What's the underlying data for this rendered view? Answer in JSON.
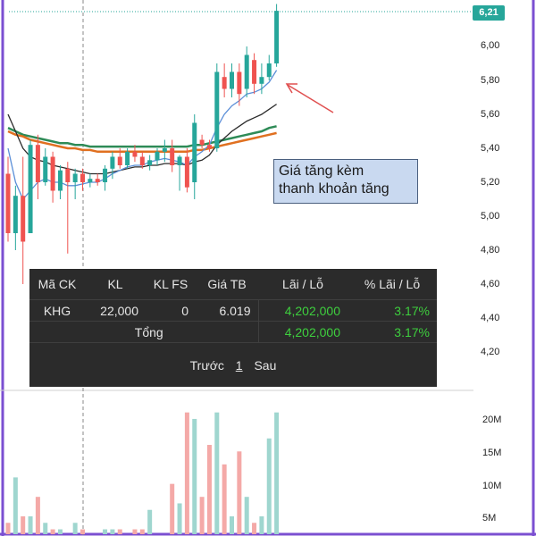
{
  "price_axis": {
    "last_price": "6,21",
    "ticks": [
      "6,00",
      "5,80",
      "5,60",
      "5,40",
      "5,20",
      "5,00",
      "4,80",
      "4,60",
      "4,40",
      "4,20"
    ]
  },
  "volume_axis": {
    "ticks": [
      "20M",
      "15M",
      "10M",
      "5M"
    ]
  },
  "annotation": {
    "line1": "Giá tăng kèm",
    "line2": "thanh khoản tăng"
  },
  "pnl_table": {
    "headers": [
      "Mã CK",
      "KL",
      "KL FS",
      "Giá TB",
      "Lãi / Lỗ",
      "% Lãi / Lỗ"
    ],
    "row": {
      "symbol": "KHG",
      "qty": "22,000",
      "qty_fs": "0",
      "avg_price": "6.019",
      "pnl": "4,202,000",
      "pnl_pct": "3.17%"
    },
    "total": {
      "label": "Tổng",
      "pnl": "4,202,000",
      "pnl_pct": "3.17%"
    },
    "pager": {
      "prev": "Trước",
      "page": "1",
      "next": "Sau"
    }
  },
  "colors": {
    "up": "#26a69a",
    "down": "#ef5350",
    "ma_green": "#2e8b57",
    "ma_orange": "#e07020",
    "ma_dark": "#2b2b2b",
    "ma_blue": "#5b8fd8",
    "annotation_bg": "#c9d9f0",
    "panel_bg": "#2b2b2b",
    "positive_text": "#3ecf3e"
  },
  "chart_data": {
    "type": "candlestick",
    "ylim": [
      4.1,
      6.25
    ],
    "candles": [
      {
        "o": 5.25,
        "h": 5.35,
        "l": 4.85,
        "c": 4.9
      },
      {
        "o": 4.9,
        "h": 5.18,
        "l": 4.8,
        "c": 5.12
      },
      {
        "o": 5.12,
        "h": 5.35,
        "l": 4.6,
        "c": 4.85
      },
      {
        "o": 4.9,
        "h": 5.45,
        "l": 4.9,
        "c": 5.42
      },
      {
        "o": 5.42,
        "h": 5.48,
        "l": 5.1,
        "c": 5.2
      },
      {
        "o": 5.2,
        "h": 5.4,
        "l": 5.18,
        "c": 5.35
      },
      {
        "o": 5.35,
        "h": 5.38,
        "l": 5.08,
        "c": 5.15
      },
      {
        "o": 5.15,
        "h": 5.3,
        "l": 5.1,
        "c": 5.27
      },
      {
        "o": 5.28,
        "h": 5.32,
        "l": 4.78,
        "c": 5.2
      },
      {
        "o": 5.2,
        "h": 5.28,
        "l": 5.1,
        "c": 5.25
      },
      {
        "o": 5.25,
        "h": 5.28,
        "l": 5.15,
        "c": 5.2
      },
      {
        "o": 5.2,
        "h": 5.25,
        "l": 5.17,
        "c": 5.22
      },
      {
        "o": 5.22,
        "h": 5.25,
        "l": 5.18,
        "c": 5.2
      },
      {
        "o": 5.2,
        "h": 5.3,
        "l": 5.15,
        "c": 5.28
      },
      {
        "o": 5.28,
        "h": 5.38,
        "l": 5.22,
        "c": 5.35
      },
      {
        "o": 5.35,
        "h": 5.4,
        "l": 5.28,
        "c": 5.3
      },
      {
        "o": 5.3,
        "h": 5.4,
        "l": 5.28,
        "c": 5.38
      },
      {
        "o": 5.38,
        "h": 5.42,
        "l": 5.32,
        "c": 5.35
      },
      {
        "o": 5.35,
        "h": 5.38,
        "l": 5.28,
        "c": 5.3
      },
      {
        "o": 5.3,
        "h": 5.36,
        "l": 5.27,
        "c": 5.33
      },
      {
        "o": 5.33,
        "h": 5.4,
        "l": 5.3,
        "c": 5.38
      },
      {
        "o": 5.38,
        "h": 5.45,
        "l": 5.32,
        "c": 5.4
      },
      {
        "o": 5.4,
        "h": 5.45,
        "l": 5.26,
        "c": 5.3
      },
      {
        "o": 5.3,
        "h": 5.36,
        "l": 5.15,
        "c": 5.35
      },
      {
        "o": 5.35,
        "h": 5.4,
        "l": 5.14,
        "c": 5.17
      },
      {
        "o": 5.2,
        "h": 5.6,
        "l": 5.1,
        "c": 5.55
      },
      {
        "o": 5.45,
        "h": 5.48,
        "l": 5.4,
        "c": 5.42
      },
      {
        "o": 5.42,
        "h": 5.45,
        "l": 5.38,
        "c": 5.4
      },
      {
        "o": 5.4,
        "h": 5.9,
        "l": 5.38,
        "c": 5.85
      },
      {
        "o": 5.82,
        "h": 5.9,
        "l": 5.7,
        "c": 5.75
      },
      {
        "o": 5.75,
        "h": 5.9,
        "l": 5.7,
        "c": 5.85
      },
      {
        "o": 5.85,
        "h": 5.9,
        "l": 5.65,
        "c": 5.72
      },
      {
        "o": 5.75,
        "h": 6.0,
        "l": 5.7,
        "c": 5.95
      },
      {
        "o": 5.92,
        "h": 5.96,
        "l": 5.72,
        "c": 5.78
      },
      {
        "o": 5.78,
        "h": 5.9,
        "l": 5.72,
        "c": 5.82
      },
      {
        "o": 5.82,
        "h": 5.95,
        "l": 5.8,
        "c": 5.9
      },
      {
        "o": 5.9,
        "h": 6.25,
        "l": 5.88,
        "c": 6.21
      }
    ],
    "volumes": [
      4,
      11,
      5,
      5,
      8,
      4,
      3,
      3,
      2,
      4,
      3,
      2,
      2,
      3,
      3,
      3,
      2,
      3,
      3,
      6,
      2,
      2,
      10,
      7,
      21,
      20,
      8,
      16,
      21,
      13,
      5,
      15,
      8,
      4,
      5,
      17,
      21
    ],
    "moving_averages": [
      {
        "color": "#2e8b57",
        "values": [
          5.52,
          5.5,
          5.48,
          5.47,
          5.46,
          5.45,
          5.44,
          5.43,
          5.43,
          5.42,
          5.42,
          5.41,
          5.41,
          5.41,
          5.41,
          5.41,
          5.41,
          5.41,
          5.41,
          5.41,
          5.41,
          5.41,
          5.41,
          5.41,
          5.41,
          5.42,
          5.42,
          5.43,
          5.44,
          5.45,
          5.46,
          5.47,
          5.48,
          5.49,
          5.5,
          5.52,
          5.53
        ]
      },
      {
        "color": "#e07020",
        "values": [
          5.5,
          5.48,
          5.47,
          5.45,
          5.44,
          5.43,
          5.42,
          5.41,
          5.4,
          5.4,
          5.39,
          5.39,
          5.38,
          5.38,
          5.38,
          5.38,
          5.38,
          5.38,
          5.38,
          5.38,
          5.38,
          5.38,
          5.38,
          5.38,
          5.38,
          5.39,
          5.39,
          5.4,
          5.41,
          5.42,
          5.43,
          5.44,
          5.45,
          5.46,
          5.47,
          5.48,
          5.49
        ]
      },
      {
        "color": "#2b2b2b",
        "values": [
          5.6,
          5.5,
          5.4,
          5.35,
          5.33,
          5.32,
          5.3,
          5.29,
          5.28,
          5.27,
          5.26,
          5.25,
          5.25,
          5.25,
          5.26,
          5.27,
          5.28,
          5.29,
          5.29,
          5.3,
          5.3,
          5.31,
          5.31,
          5.31,
          5.3,
          5.32,
          5.33,
          5.36,
          5.42,
          5.46,
          5.5,
          5.53,
          5.56,
          5.58,
          5.6,
          5.63,
          5.66
        ]
      },
      {
        "color": "#5b8fd8",
        "values": [
          5.4,
          5.2,
          5.1,
          5.15,
          5.2,
          5.22,
          5.2,
          5.2,
          5.18,
          5.18,
          5.19,
          5.2,
          5.2,
          5.22,
          5.25,
          5.27,
          5.29,
          5.3,
          5.3,
          5.32,
          5.33,
          5.34,
          5.33,
          5.32,
          5.3,
          5.35,
          5.38,
          5.42,
          5.52,
          5.6,
          5.65,
          5.68,
          5.72,
          5.73,
          5.75,
          5.79,
          5.86
        ]
      }
    ]
  }
}
